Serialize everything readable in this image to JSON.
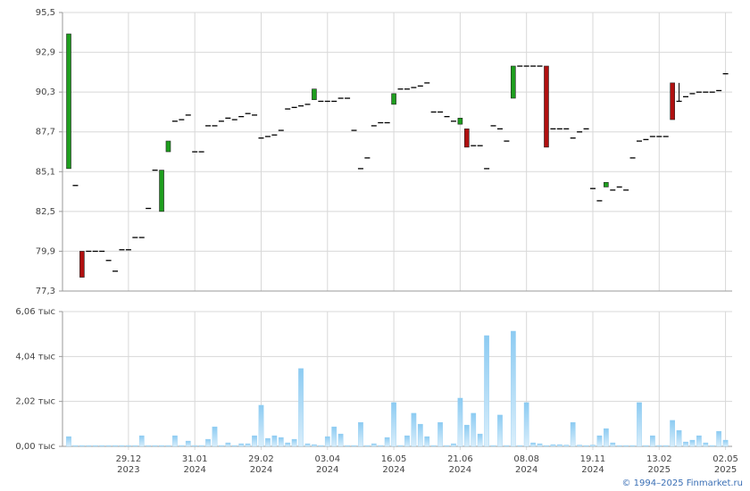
{
  "chart_data": [
    {
      "type": "candlestick",
      "up_color": "#1e9e1e",
      "down_color": "#b01010",
      "flat_color": "#000000",
      "ylim": [
        77.3,
        95.5
      ],
      "yticks": [
        {
          "value": 77.3,
          "label": "77,3"
        },
        {
          "value": 79.9,
          "label": "79,9"
        },
        {
          "value": 82.5,
          "label": "82,5"
        },
        {
          "value": 85.1,
          "label": "85,1"
        },
        {
          "value": 87.7,
          "label": "87,7"
        },
        {
          "value": 90.3,
          "label": "90,3"
        },
        {
          "value": 92.9,
          "label": "92,9"
        },
        {
          "value": 95.5,
          "label": "95,5"
        }
      ],
      "grid": true,
      "open": [
        85.3,
        84.2,
        79.9,
        79.9,
        79.9,
        79.9,
        79.3,
        78.6,
        80,
        80,
        80.8,
        80.8,
        82.7,
        85.2,
        82.5,
        86.4,
        88.4,
        88.5,
        88.8,
        86.4,
        86.4,
        88.1,
        88.1,
        88.4,
        88.6,
        88.5,
        88.7,
        88.9,
        88.8,
        87.3,
        87.4,
        87.5,
        87.8,
        89.2,
        89.3,
        89.4,
        89.5,
        89.8,
        89.7,
        89.7,
        89.7,
        89.9,
        89.9,
        87.8,
        85.3,
        86,
        88.1,
        88.3,
        88.3,
        89.5,
        90.5,
        90.5,
        90.6,
        90.7,
        90.9,
        89,
        89,
        88.7,
        88.4,
        88.2,
        87.9,
        86.8,
        86.8,
        85.3,
        88.1,
        87.9,
        87.1,
        89.9,
        92,
        92,
        92,
        92,
        92,
        87.9,
        87.9,
        87.9,
        87.3,
        87.7,
        87.9,
        84,
        83.2,
        84.1,
        83.9,
        84.1,
        83.9,
        86,
        87.1,
        87.2,
        87.4,
        87.4,
        87.4,
        90.9,
        89.7,
        90,
        90.2,
        90.3,
        90.3,
        90.3,
        90.4,
        91.5
      ],
      "high": [
        94.1,
        84.2,
        79.9,
        79.9,
        79.9,
        79.9,
        79.3,
        78.6,
        80,
        80,
        80.8,
        80.8,
        82.7,
        85.2,
        85.2,
        87.1,
        88.4,
        88.5,
        88.8,
        86.4,
        86.4,
        88.1,
        88.1,
        88.4,
        88.6,
        88.5,
        88.7,
        88.9,
        88.8,
        87.3,
        87.4,
        87.5,
        87.8,
        89.2,
        89.3,
        89.4,
        89.5,
        90.5,
        89.7,
        89.7,
        89.7,
        89.9,
        89.9,
        87.8,
        85.3,
        86,
        88.1,
        88.3,
        88.3,
        90.2,
        90.5,
        90.5,
        90.6,
        90.7,
        90.9,
        89,
        89,
        88.7,
        88.4,
        88.6,
        87.9,
        86.8,
        86.8,
        85.3,
        88.1,
        87.9,
        87.1,
        92,
        92,
        92,
        92,
        92,
        92,
        87.9,
        87.9,
        87.9,
        87.3,
        87.7,
        87.9,
        84,
        83.2,
        84.4,
        83.9,
        84.1,
        83.9,
        86,
        87.1,
        87.2,
        87.4,
        87.4,
        87.4,
        90.9,
        90.9,
        90,
        90.2,
        90.3,
        90.3,
        90.3,
        90.4,
        91.5
      ],
      "low": [
        85.3,
        84.2,
        78.2,
        79.9,
        79.9,
        79.9,
        79.3,
        78.6,
        80,
        80,
        80.8,
        80.8,
        82.7,
        85.2,
        82.5,
        86.4,
        88.4,
        88.5,
        88.8,
        86.4,
        86.4,
        88.1,
        88.1,
        88.4,
        88.6,
        88.5,
        88.7,
        88.9,
        88.8,
        87.3,
        87.4,
        87.5,
        87.8,
        89.2,
        89.3,
        89.4,
        89.5,
        89.8,
        89.7,
        89.7,
        89.7,
        89.9,
        89.9,
        87.8,
        85.3,
        86,
        88.1,
        88.3,
        88.3,
        89.5,
        90.5,
        90.5,
        90.6,
        90.7,
        90.9,
        89,
        89,
        88.7,
        88.4,
        88.2,
        86.7,
        86.8,
        86.8,
        85.3,
        88.1,
        87.9,
        87.1,
        89.9,
        92,
        92,
        92,
        92,
        86.7,
        87.9,
        87.9,
        87.9,
        87.3,
        87.7,
        87.9,
        84,
        83.2,
        84.1,
        83.9,
        84.1,
        83.9,
        86,
        87.1,
        87.2,
        87.4,
        87.4,
        87.4,
        88.5,
        89.7,
        90,
        90.2,
        90.3,
        90.3,
        90.3,
        90.4,
        91.5
      ],
      "close": [
        94.1,
        84.2,
        78.2,
        79.9,
        79.9,
        79.9,
        79.3,
        78.6,
        80,
        80,
        80.8,
        80.8,
        82.7,
        85.2,
        85.2,
        87.1,
        88.4,
        88.5,
        88.8,
        86.4,
        86.4,
        88.1,
        88.1,
        88.4,
        88.6,
        88.5,
        88.7,
        88.9,
        88.8,
        87.3,
        87.4,
        87.5,
        87.8,
        89.2,
        89.3,
        89.4,
        89.5,
        90.5,
        89.7,
        89.7,
        89.7,
        89.9,
        89.9,
        87.8,
        85.3,
        86,
        88.1,
        88.3,
        88.3,
        90.2,
        90.5,
        90.5,
        90.6,
        90.7,
        90.9,
        89,
        89,
        88.7,
        88.4,
        88.6,
        86.7,
        86.8,
        86.8,
        85.3,
        88.1,
        87.9,
        87.1,
        92,
        92,
        92,
        92,
        92,
        86.7,
        87.9,
        87.9,
        87.9,
        87.3,
        87.7,
        87.9,
        84,
        83.2,
        84.4,
        83.9,
        84.1,
        83.9,
        86,
        87.1,
        87.2,
        87.4,
        87.4,
        87.4,
        88.5,
        89.7,
        90,
        90.2,
        90.3,
        90.3,
        90.3,
        90.4,
        91.5
      ]
    },
    {
      "type": "bar",
      "color": "#8ccbf2",
      "ylim": [
        0,
        6.06
      ],
      "yticks": [
        {
          "value": 0,
          "label": "0,00 тыс"
        },
        {
          "value": 2.02,
          "label": "2,02 тыс"
        },
        {
          "value": 4.04,
          "label": "4,04 тыс"
        },
        {
          "value": 6.06,
          "label": "6,06 тыс"
        }
      ],
      "grid": true,
      "categories": [
        null,
        null,
        null,
        null,
        null,
        null,
        null,
        null,
        null,
        [
          "29.12",
          "2023"
        ],
        null,
        null,
        null,
        null,
        null,
        null,
        null,
        null,
        null,
        [
          "31.01",
          "2024"
        ],
        null,
        null,
        null,
        null,
        null,
        null,
        null,
        null,
        null,
        [
          "29.02",
          "2024"
        ],
        null,
        null,
        null,
        null,
        null,
        null,
        null,
        null,
        null,
        [
          "03.04",
          "2024"
        ],
        null,
        null,
        null,
        null,
        null,
        null,
        null,
        null,
        null,
        [
          "16.05",
          "2024"
        ],
        null,
        null,
        null,
        null,
        null,
        null,
        null,
        null,
        null,
        [
          "21.06",
          "2024"
        ],
        null,
        null,
        null,
        null,
        null,
        null,
        null,
        null,
        null,
        [
          "08.08",
          "2024"
        ],
        null,
        null,
        null,
        null,
        null,
        null,
        null,
        null,
        null,
        [
          "19.11",
          "2024"
        ],
        null,
        null,
        null,
        null,
        null,
        null,
        null,
        null,
        null,
        [
          "13.02",
          "2025"
        ],
        null,
        null,
        null,
        null,
        null,
        null,
        null,
        null,
        null,
        [
          "02.05",
          "2025"
        ]
      ],
      "values": [
        0.44,
        0.04,
        0.04,
        0.04,
        0.04,
        0.04,
        0.04,
        0.04,
        0.04,
        0.04,
        0.04,
        0.48,
        0.04,
        0.04,
        0.04,
        0.04,
        0.48,
        0.04,
        0.24,
        0.04,
        0.04,
        0.32,
        0.88,
        0.04,
        0.16,
        0.04,
        0.12,
        0.12,
        0.48,
        1.85,
        0.36,
        0.48,
        0.4,
        0.16,
        0.32,
        3.5,
        0.12,
        0.08,
        0.04,
        0.44,
        0.88,
        0.56,
        0.04,
        0.04,
        1.08,
        0.04,
        0.12,
        0.04,
        0.4,
        1.97,
        0.04,
        0.48,
        1.49,
        1.0,
        0.44,
        0.04,
        1.08,
        0.04,
        0.12,
        2.17,
        0.96,
        1.49,
        0.56,
        4.98,
        0.04,
        1.41,
        0.04,
        5.18,
        0.04,
        1.97,
        0.16,
        0.12,
        0.04,
        0.08,
        0.08,
        0.06,
        1.08,
        0.06,
        0.04,
        0.06,
        0.48,
        0.8,
        0.16,
        0.04,
        0.04,
        0.04,
        1.97,
        0.04,
        0.48,
        0.04,
        0.04,
        1.17,
        0.72,
        0.2,
        0.28,
        0.48,
        0.16,
        0.04,
        0.68,
        0.28
      ]
    }
  ],
  "footer": "© 1994–2025 Finmarket.ru"
}
